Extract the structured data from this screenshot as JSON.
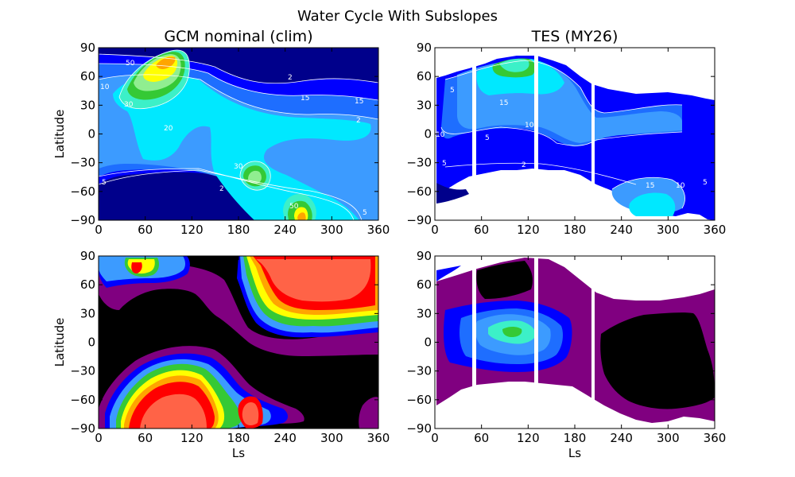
{
  "figure": {
    "suptitle": "Water Cycle With Subslopes"
  },
  "chart_data": [
    {
      "type": "heatmap",
      "panel": "top-left",
      "title": "GCM nominal (clim)",
      "xlabel": "",
      "ylabel": "Latitude",
      "xlim": [
        0,
        360
      ],
      "ylim": [
        -90,
        90
      ],
      "xticks": [
        "0",
        "60",
        "120",
        "180",
        "240",
        "300",
        "360"
      ],
      "yticks": [
        "90",
        "60",
        "30",
        "0",
        "−30",
        "−60",
        "−90"
      ],
      "contour_labels": [
        "50",
        "10",
        "30",
        "2",
        "15",
        "20",
        "15",
        "2",
        "30",
        "5",
        "2",
        "50",
        "5"
      ]
    },
    {
      "type": "heatmap",
      "panel": "top-right",
      "title": "TES (MY26)",
      "xlabel": "",
      "ylabel": "",
      "xlim": [
        0,
        360
      ],
      "ylim": [
        -90,
        90
      ],
      "xticks": [
        "0",
        "60",
        "120",
        "180",
        "240",
        "300",
        "360"
      ],
      "yticks": [
        "90",
        "60",
        "30",
        "0",
        "−30",
        "−60",
        "−90"
      ],
      "contour_labels": [
        "5",
        "15",
        "10",
        "5",
        "10",
        "5",
        "2",
        "15",
        "10",
        "5"
      ]
    },
    {
      "type": "heatmap",
      "panel": "bottom-left",
      "title": "",
      "xlabel": "Ls",
      "ylabel": "Latitude",
      "xlim": [
        0,
        360
      ],
      "ylim": [
        -90,
        90
      ],
      "xticks": [
        "0",
        "60",
        "120",
        "180",
        "240",
        "300",
        "360"
      ],
      "yticks": [
        "90",
        "60",
        "30",
        "0",
        "−30",
        "−60",
        "−90"
      ]
    },
    {
      "type": "heatmap",
      "panel": "bottom-right",
      "title": "",
      "xlabel": "Ls",
      "ylabel": "",
      "xlim": [
        0,
        360
      ],
      "ylim": [
        -90,
        90
      ],
      "xticks": [
        "0",
        "60",
        "120",
        "180",
        "240",
        "300",
        "360"
      ],
      "yticks": [
        "90",
        "60",
        "30",
        "0",
        "−30",
        "−60",
        "−90"
      ]
    }
  ],
  "colors": {
    "navy": "#00008b",
    "blue": "#0000ff",
    "midblue": "#1e6eff",
    "skyblue": "#3c9bff",
    "cyan": "#00e8ff",
    "aqua": "#3cf0c8",
    "green": "#35c935",
    "lightgreen": "#90ee90",
    "yellow": "#ffff00",
    "orange": "#ffa500",
    "red": "#ff0000",
    "salmon": "#ff6347",
    "purple": "#800080",
    "black": "#000000"
  }
}
